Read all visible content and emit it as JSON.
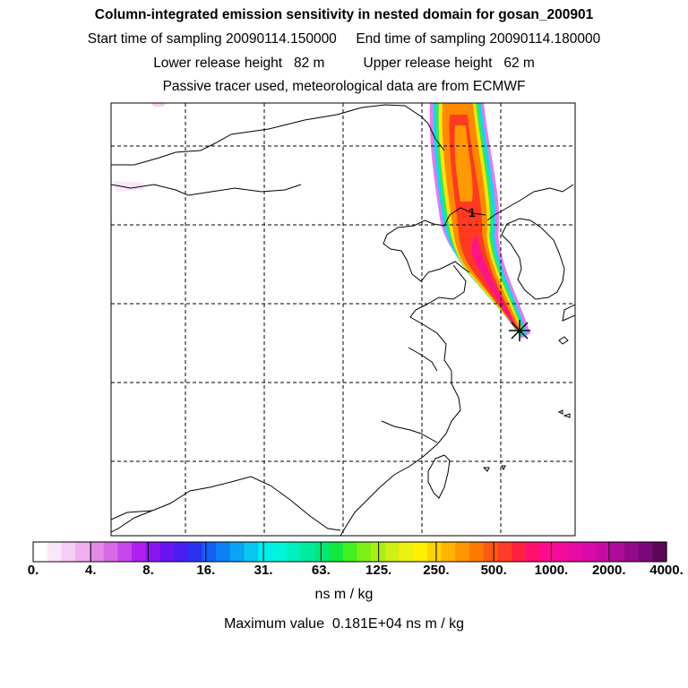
{
  "titles": {
    "line1": "Column-integrated emission sensitivity in nested domain for gosan_200901",
    "line2": "Start time of sampling 20090114.150000     End time of sampling 20090114.180000",
    "line3": "Lower release height   82 m          Upper release height   62 m",
    "line4": "Passive tracer used, meteorological data are from ECMWF"
  },
  "map": {
    "plume_label": "1",
    "receptor_symbol": "star-receptor"
  },
  "colorbar": {
    "tick_labels": [
      "0.",
      "4.",
      "8.",
      "16.",
      "31.",
      "63.",
      "125.",
      "250.",
      "500.",
      "1000.",
      "2000.",
      "4000."
    ],
    "colors": [
      "#ffffff",
      "#fbe6fb",
      "#f6cdf6",
      "#f0b0f0",
      "#e68ae8",
      "#d86ae8",
      "#c648ec",
      "#b020f0",
      "#8c14f0",
      "#6a14f0",
      "#4a1ef0",
      "#2a32f0",
      "#1460f5",
      "#0c82f5",
      "#0aa4f5",
      "#08c8f2",
      "#00f0ee",
      "#00f5dc",
      "#00f0c0",
      "#00eaa0",
      "#00e878",
      "#10e840",
      "#40f020",
      "#7cf014",
      "#a8f014",
      "#cef014",
      "#ecf010",
      "#fff000",
      "#ffd400",
      "#ffb400",
      "#ff9600",
      "#ff7a00",
      "#ff5a10",
      "#ff3c28",
      "#ff2040",
      "#ff1070",
      "#ff0a90",
      "#f50a9c",
      "#e80aa4",
      "#d80aa8",
      "#c80aa4",
      "#b00a9a",
      "#94088a",
      "#7a087a",
      "#5c0658"
    ],
    "units": "ns m / kg",
    "max_value_text": "Maximum value  0.181E+04 ns m / kg"
  }
}
